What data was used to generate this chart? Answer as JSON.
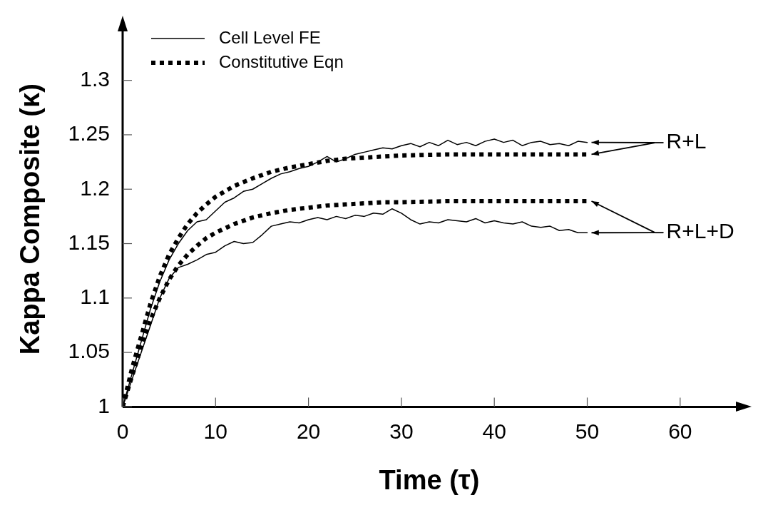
{
  "chart_data": {
    "type": "line",
    "xlabel": "Time (τ)",
    "ylabel": "Kappa Composite (κ)",
    "xlim": [
      0,
      66
    ],
    "ylim": [
      1,
      1.345
    ],
    "xticks": [
      0,
      10,
      20,
      30,
      40,
      50,
      60
    ],
    "yticks": [
      1,
      1.05,
      1.1,
      1.15,
      1.2,
      1.25,
      1.3
    ],
    "grid": false,
    "legend": "top left",
    "marker": "none",
    "series": [
      {
        "name": "Cell Level FE",
        "color": "#000000",
        "line_style": "solid",
        "x": [
          0,
          1,
          2,
          3,
          4,
          5,
          6,
          7,
          8,
          9,
          10,
          11,
          12,
          13,
          14,
          15,
          16,
          17,
          18,
          19,
          20,
          21,
          22,
          23,
          24,
          25,
          26,
          27,
          28,
          29,
          30,
          31,
          32,
          33,
          34,
          35,
          36,
          37,
          38,
          39,
          40,
          41,
          42,
          43,
          44,
          45,
          46,
          47,
          48,
          49,
          50
        ],
        "values": [
          1.0,
          1.03,
          1.06,
          1.09,
          1.115,
          1.135,
          1.15,
          1.162,
          1.17,
          1.172,
          1.18,
          1.188,
          1.192,
          1.198,
          1.2,
          1.205,
          1.21,
          1.214,
          1.216,
          1.219,
          1.221,
          1.225,
          1.23,
          1.225,
          1.228,
          1.232,
          1.234,
          1.236,
          1.238,
          1.237,
          1.24,
          1.242,
          1.239,
          1.243,
          1.24,
          1.245,
          1.241,
          1.243,
          1.24,
          1.244,
          1.246,
          1.243,
          1.245,
          1.24,
          1.243,
          1.244,
          1.241,
          1.242,
          1.24,
          1.244,
          1.243
        ]
      },
      {
        "name": "Constitutive Eqn",
        "color": "#000000",
        "line_style": "dotted",
        "x": [
          0,
          1,
          2,
          3,
          4,
          5,
          6,
          7,
          8,
          9,
          10,
          12,
          14,
          16,
          18,
          20,
          22,
          24,
          26,
          28,
          30,
          35,
          40,
          45,
          50
        ],
        "values": [
          1.0,
          1.035,
          1.065,
          1.095,
          1.12,
          1.14,
          1.155,
          1.168,
          1.178,
          1.186,
          1.193,
          1.203,
          1.21,
          1.216,
          1.22,
          1.223,
          1.226,
          1.228,
          1.229,
          1.23,
          1.231,
          1.232,
          1.232,
          1.232,
          1.232
        ]
      },
      {
        "color": "#000000",
        "line_style": "solid",
        "x": [
          0,
          1,
          2,
          3,
          4,
          5,
          6,
          7,
          8,
          9,
          10,
          11,
          12,
          13,
          14,
          15,
          16,
          17,
          18,
          19,
          20,
          21,
          22,
          23,
          24,
          25,
          26,
          27,
          28,
          29,
          30,
          31,
          32,
          33,
          34,
          35,
          36,
          37,
          38,
          39,
          40,
          41,
          42,
          43,
          44,
          45,
          46,
          47,
          48,
          49,
          50
        ],
        "values": [
          1.0,
          1.025,
          1.05,
          1.075,
          1.1,
          1.118,
          1.128,
          1.131,
          1.135,
          1.14,
          1.142,
          1.148,
          1.152,
          1.15,
          1.151,
          1.158,
          1.166,
          1.168,
          1.17,
          1.169,
          1.172,
          1.174,
          1.172,
          1.175,
          1.173,
          1.176,
          1.175,
          1.178,
          1.177,
          1.182,
          1.178,
          1.172,
          1.168,
          1.17,
          1.169,
          1.172,
          1.171,
          1.17,
          1.173,
          1.169,
          1.171,
          1.169,
          1.168,
          1.17,
          1.166,
          1.165,
          1.166,
          1.162,
          1.163,
          1.16,
          1.16
        ]
      },
      {
        "color": "#000000",
        "line_style": "dotted",
        "x": [
          0,
          1,
          2,
          3,
          4,
          5,
          6,
          7,
          8,
          9,
          10,
          12,
          14,
          16,
          18,
          20,
          22,
          24,
          26,
          28,
          30,
          35,
          40,
          45,
          50
        ],
        "values": [
          1.0,
          1.028,
          1.055,
          1.08,
          1.1,
          1.117,
          1.13,
          1.14,
          1.148,
          1.155,
          1.16,
          1.168,
          1.174,
          1.178,
          1.181,
          1.183,
          1.185,
          1.186,
          1.187,
          1.188,
          1.188,
          1.189,
          1.189,
          1.189,
          1.189
        ]
      }
    ],
    "annotations": [
      "R+L",
      "R+L+D"
    ]
  }
}
